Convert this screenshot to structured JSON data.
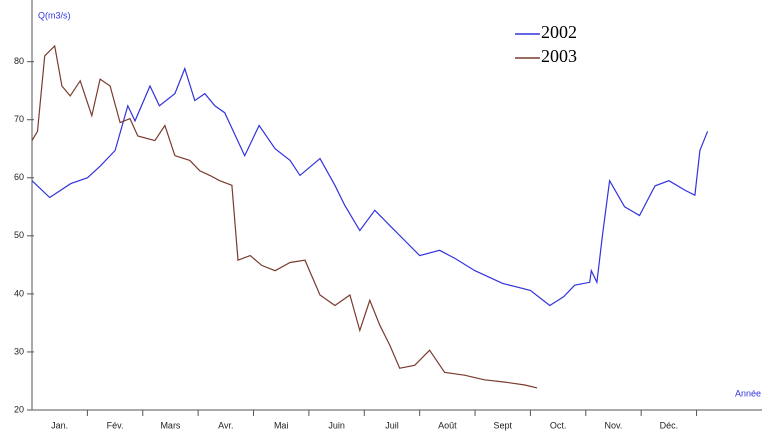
{
  "chart_data": {
    "type": "line",
    "y_label": "Q(m3/s)",
    "x_label": "Année",
    "xlim": [
      0,
      13.2
    ],
    "ylim": [
      20,
      90
    ],
    "yticks": [
      20,
      30,
      40,
      50,
      60,
      70,
      80
    ],
    "xticks": [
      {
        "value": 0.5,
        "label": "Jan."
      },
      {
        "value": 1.5,
        "label": "Fév."
      },
      {
        "value": 2.5,
        "label": "Mars"
      },
      {
        "value": 3.5,
        "label": "Avr."
      },
      {
        "value": 4.5,
        "label": "Mai"
      },
      {
        "value": 5.5,
        "label": "Juin"
      },
      {
        "value": 6.5,
        "label": "Juil"
      },
      {
        "value": 7.5,
        "label": "Août"
      },
      {
        "value": 8.5,
        "label": "Sept"
      },
      {
        "value": 9.5,
        "label": "Oct."
      },
      {
        "value": 10.5,
        "label": "Nov."
      },
      {
        "value": 11.5,
        "label": "Déc."
      }
    ],
    "series": [
      {
        "name": "2002",
        "color": "#3333dd",
        "x": [
          0,
          0.32,
          0.7,
          1.0,
          1.23,
          1.5,
          1.73,
          1.86,
          2.13,
          2.3,
          2.58,
          2.76,
          2.94,
          3.12,
          3.3,
          3.48,
          3.84,
          4.1,
          4.39,
          4.66,
          4.84,
          5.2,
          5.47,
          5.65,
          5.92,
          6.19,
          6.46,
          6.73,
          7.0,
          7.36,
          7.64,
          8.0,
          8.5,
          9.0,
          9.35,
          9.6,
          9.8,
          10.07,
          10.1,
          10.2,
          10.3,
          10.43,
          10.7,
          10.97,
          11.25,
          11.5,
          11.8,
          11.97,
          12.06,
          12.2
        ],
        "values": [
          59.5,
          56.6,
          59,
          60,
          62,
          64.7,
          72.4,
          69.8,
          75.8,
          72.4,
          74.5,
          78.8,
          73.3,
          74.5,
          72.4,
          71.2,
          63.8,
          69,
          65,
          63,
          60.4,
          63.3,
          58.7,
          55.2,
          50.9,
          54.4,
          51.8,
          49.2,
          46.6,
          47.5,
          46.1,
          44,
          41.8,
          40.6,
          38,
          39.5,
          41.5,
          42,
          44,
          42,
          50,
          59.5,
          55,
          53.5,
          58.6,
          59.5,
          57.8,
          57,
          64.7,
          68
        ]
      },
      {
        "name": "2003",
        "color": "#7a3b2e",
        "x": [
          0,
          0.1,
          0.23,
          0.41,
          0.54,
          0.69,
          0.87,
          1.08,
          1.23,
          1.41,
          1.59,
          1.77,
          1.91,
          2.22,
          2.4,
          2.58,
          2.85,
          3.03,
          3.21,
          3.39,
          3.61,
          3.72,
          3.94,
          4.15,
          4.39,
          4.66,
          4.93,
          5.2,
          5.47,
          5.74,
          5.92,
          6.1,
          6.28,
          6.46,
          6.64,
          6.91,
          7.18,
          7.45,
          7.81,
          8.17,
          8.54,
          8.9,
          9.12
        ],
        "values": [
          66.4,
          68,
          81,
          82.7,
          75.8,
          74.1,
          76.7,
          70.7,
          77,
          75.8,
          69.5,
          70.2,
          67.2,
          66.4,
          69,
          63.8,
          63,
          61.2,
          60.4,
          59.5,
          58.7,
          45.8,
          46.6,
          44.9,
          44,
          45.4,
          45.8,
          39.8,
          38,
          39.8,
          33.7,
          38.9,
          34.6,
          31.2,
          27.2,
          27.7,
          30.3,
          26.5,
          26,
          25.2,
          24.8,
          24.3,
          23.8
        ]
      }
    ]
  }
}
